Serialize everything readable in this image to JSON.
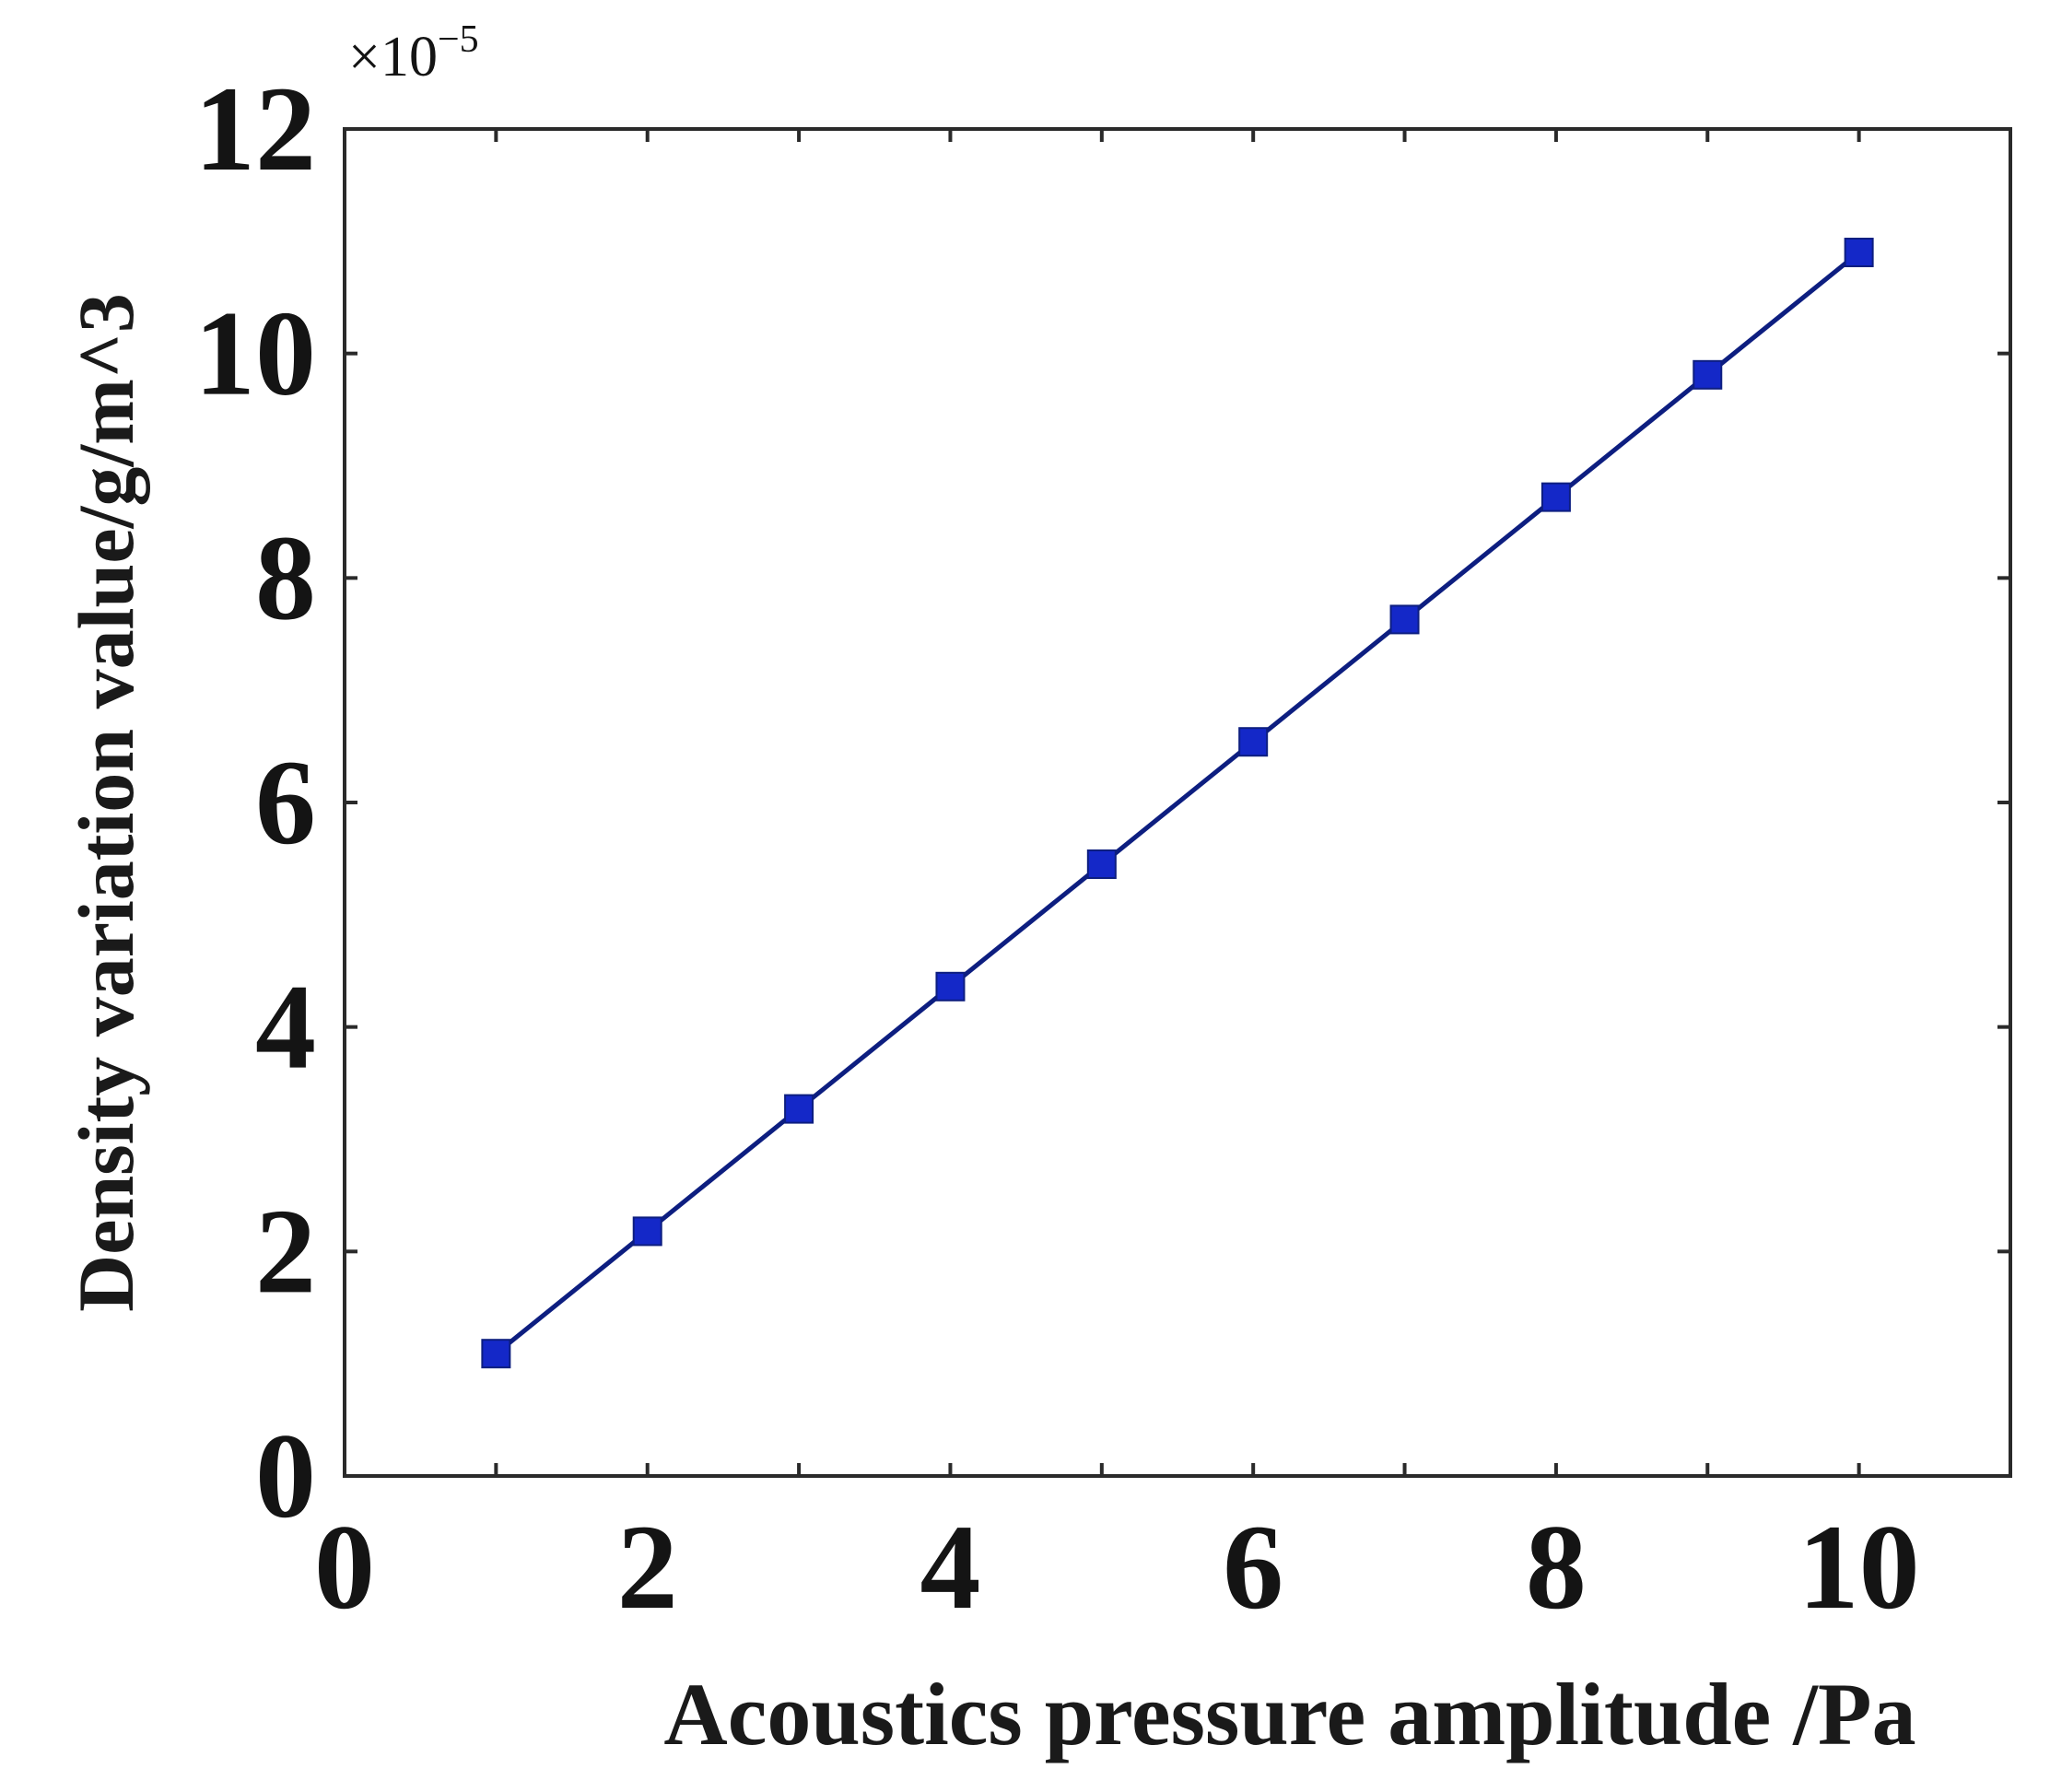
{
  "chart_data": {
    "type": "line",
    "xlabel": "Acoustics pressure amplitude /Pa",
    "ylabel": "Density variation value/g/m^3",
    "y_multiplier": {
      "base": "×10",
      "exponent": "−5"
    },
    "xlim": [
      0,
      11
    ],
    "ylim": [
      0,
      12
    ],
    "xticks": [
      0,
      2,
      4,
      6,
      8,
      10
    ],
    "yticks": [
      0,
      2,
      4,
      6,
      8,
      10,
      12
    ],
    "grid": false,
    "series": [
      {
        "x": [
          1,
          2,
          3,
          4,
          5,
          6,
          7,
          8,
          9,
          10
        ],
        "y": [
          1.09,
          2.18,
          3.27,
          4.36,
          5.45,
          6.54,
          7.63,
          8.72,
          9.81,
          10.9
        ],
        "color": "#0d1e80",
        "marker": "square",
        "marker_color": "#1428c8"
      }
    ]
  }
}
